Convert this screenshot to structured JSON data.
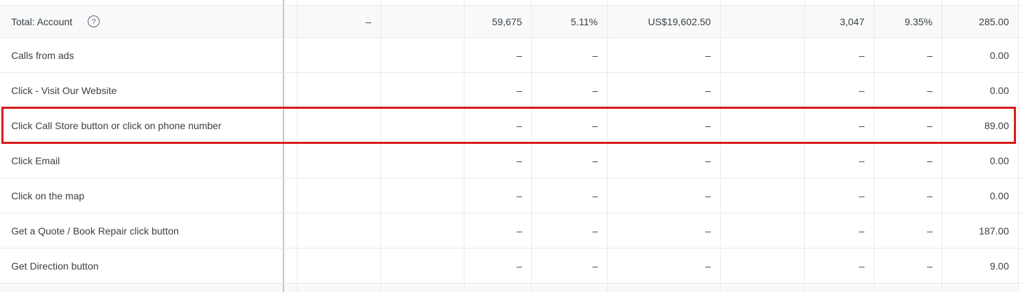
{
  "table": {
    "total_row": {
      "label": "Total: Account",
      "help_icon": "circled-question-mark",
      "help_glyph": "?",
      "values": [
        "–",
        "",
        "59,675",
        "5.11%",
        "US$19,602.50",
        "",
        "3,047",
        "9.35%",
        "285.00"
      ]
    },
    "rows": [
      {
        "label": "Calls from ads",
        "values": [
          "",
          "",
          "–",
          "–",
          "–",
          "",
          "–",
          "–",
          "0.00"
        ]
      },
      {
        "label": "Click - Visit Our Website",
        "values": [
          "",
          "",
          "–",
          "–",
          "–",
          "",
          "–",
          "–",
          "0.00"
        ]
      },
      {
        "label": "Click Call Store button or click on phone number",
        "values": [
          "",
          "",
          "–",
          "–",
          "–",
          "",
          "–",
          "–",
          "89.00"
        ]
      },
      {
        "label": "Click Email",
        "values": [
          "",
          "",
          "–",
          "–",
          "–",
          "",
          "–",
          "–",
          "0.00"
        ]
      },
      {
        "label": "Click on the map",
        "values": [
          "",
          "",
          "–",
          "–",
          "–",
          "",
          "–",
          "–",
          "0.00"
        ]
      },
      {
        "label": "Get a Quote / Book Repair click button",
        "values": [
          "",
          "",
          "–",
          "–",
          "–",
          "",
          "–",
          "–",
          "187.00"
        ]
      },
      {
        "label": "Get Direction button",
        "values": [
          "",
          "",
          "–",
          "–",
          "–",
          "",
          "–",
          "–",
          "9.00"
        ]
      }
    ],
    "highlighted_row_label": "Click Call Store button or click on phone number"
  },
  "colors": {
    "highlight_border": "#d81b1b",
    "total_row_background": "#f8f9fa",
    "text": "#3c4043",
    "gridline": "#e8eaec",
    "frozen_column_divider": "#c3c6ca"
  }
}
